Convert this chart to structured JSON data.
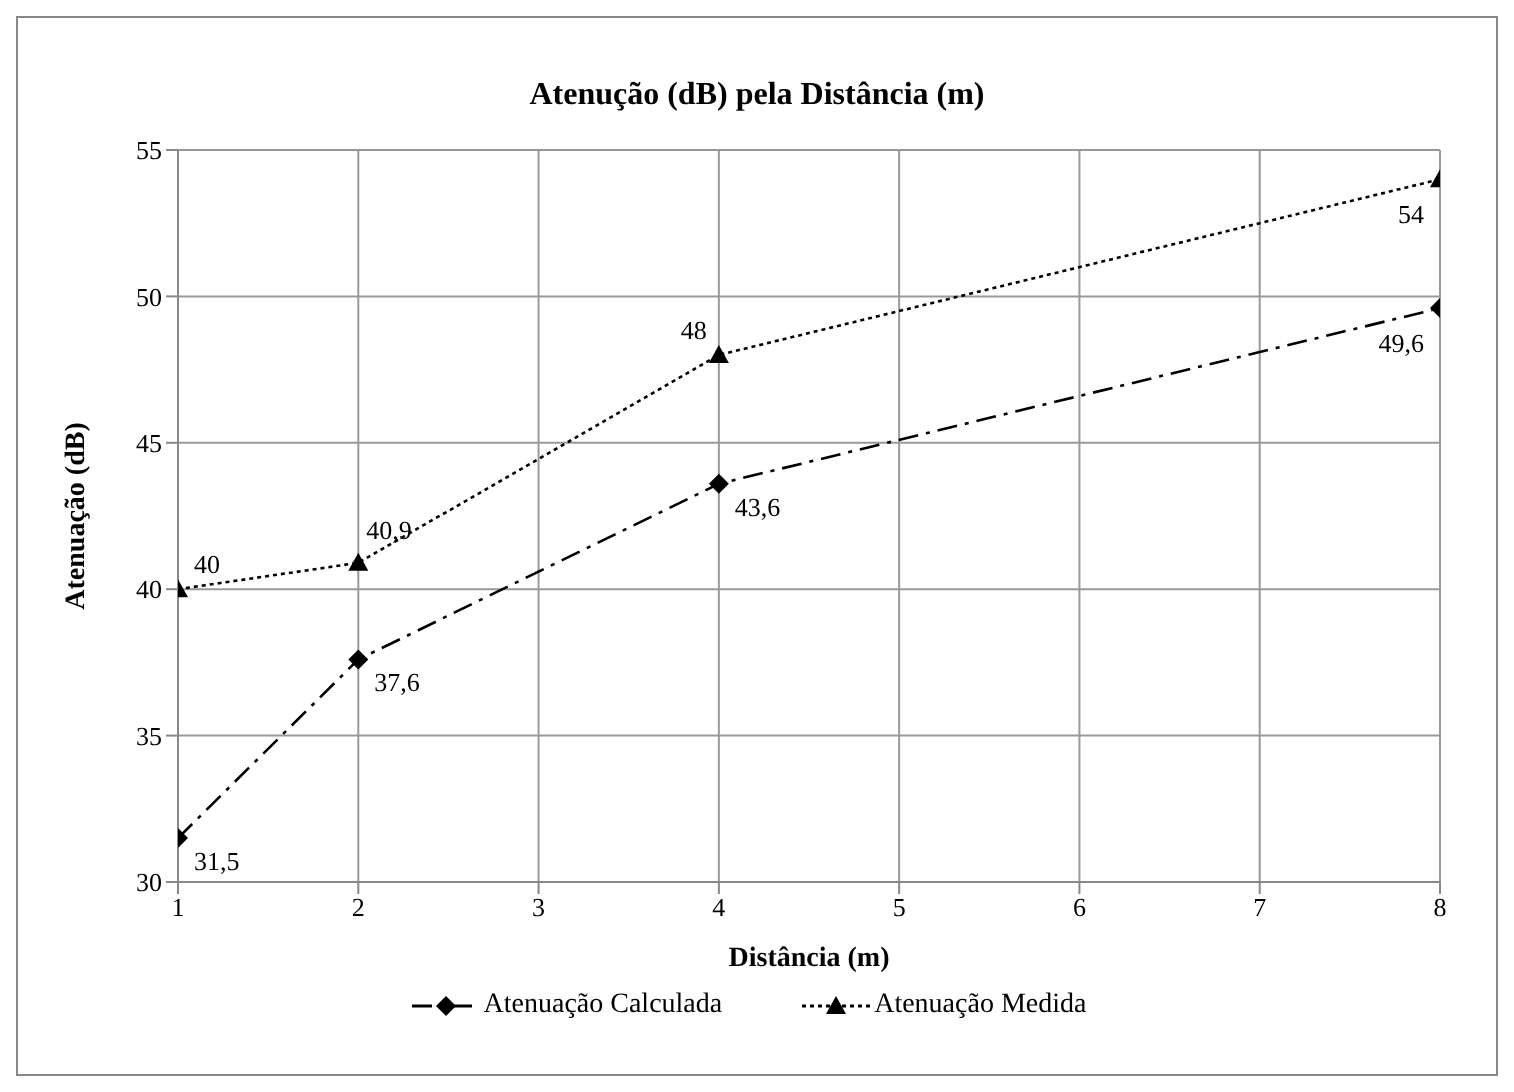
{
  "chart_data": {
    "type": "line",
    "title": "Atenução (dB) pela Distância (m)",
    "xlabel": "Distância (m)",
    "ylabel": "Atenuação (dB)",
    "x": [
      1,
      2,
      4,
      8
    ],
    "xlim": [
      1,
      8
    ],
    "xticks": [
      1,
      2,
      3,
      4,
      5,
      6,
      7,
      8
    ],
    "ylim": [
      30,
      55
    ],
    "yticks": [
      30,
      35,
      40,
      45,
      50,
      55
    ],
    "grid": true,
    "legend": "bottom",
    "series": [
      {
        "name": "Atenuação Calculada",
        "color": "#000000",
        "values": [
          31.5,
          37.6,
          43.6,
          49.6
        ],
        "value_labels": [
          "31,5",
          "37,6",
          "43,6",
          "49,6"
        ],
        "marker": "diamond",
        "line_style": "dashed"
      },
      {
        "name": "Atenuação Medida",
        "color": "#000000",
        "values": [
          40,
          40.9,
          48,
          54
        ],
        "value_labels": [
          "40",
          "40,9",
          "48",
          "54"
        ],
        "marker": "triangle",
        "line_style": "dotted"
      }
    ]
  }
}
